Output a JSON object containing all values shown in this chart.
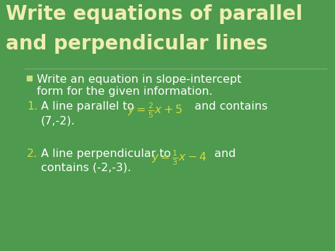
{
  "background_color": "#4e9a4e",
  "title_line1": "Write equations of parallel",
  "title_line2": "and perpendicular lines",
  "title_color": "#eeeeb0",
  "title_fontsize": 20,
  "divider_color": "#7aaa7a",
  "bullet_square_color": "#ccdd88",
  "bullet_text_line1": "Write an equation in slope-intercept",
  "bullet_text_line2": "form for the given information.",
  "body_text_color": "#ffffff",
  "number1_color": "#ccdd44",
  "number2_color": "#ccdd44",
  "eq1_color": "#ccdd44",
  "eq2_color": "#ccdd44",
  "body_fontsize": 11.5,
  "title_fontsize2": 20
}
